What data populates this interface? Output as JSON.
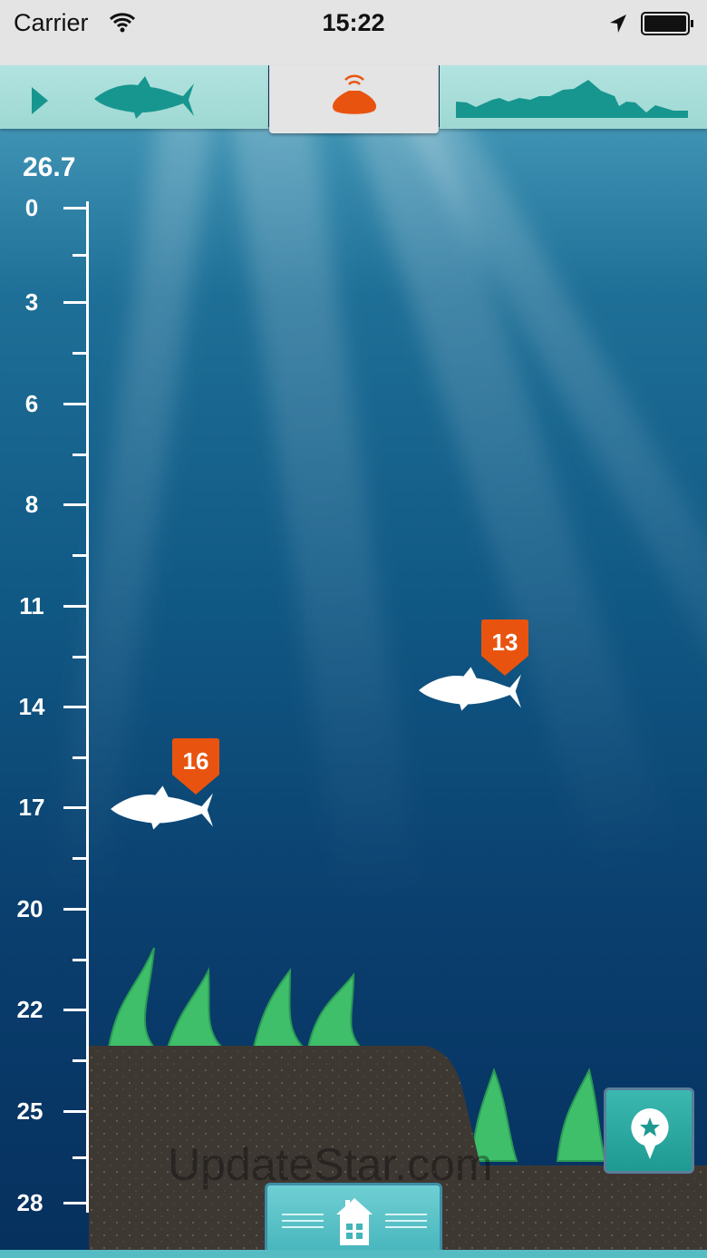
{
  "status_bar": {
    "carrier": "Carrier",
    "time": "15:22",
    "icons": [
      "wifi-icon",
      "location-arrow-icon",
      "battery-icon"
    ]
  },
  "tabs": [
    {
      "name": "fish-mode",
      "icon": "fish-icon"
    },
    {
      "name": "sonar-device",
      "icon": "sonar-bobber-icon",
      "active": true
    },
    {
      "name": "bottom-contour",
      "icon": "contour-icon"
    }
  ],
  "depth": {
    "current": "26.7",
    "scale": [
      "0",
      "3",
      "6",
      "8",
      "11",
      "14",
      "17",
      "20",
      "22",
      "25",
      "28"
    ]
  },
  "fish": [
    {
      "depth_label": "13"
    },
    {
      "depth_label": "16"
    }
  ],
  "buttons": {
    "mark": "mark-location-icon",
    "home": "home-icon"
  },
  "watermark": "UpdateStar.com",
  "colors": {
    "accent": "#e8540f",
    "teal": "#1e9a92",
    "tab_bg": "#a8ddd8"
  }
}
